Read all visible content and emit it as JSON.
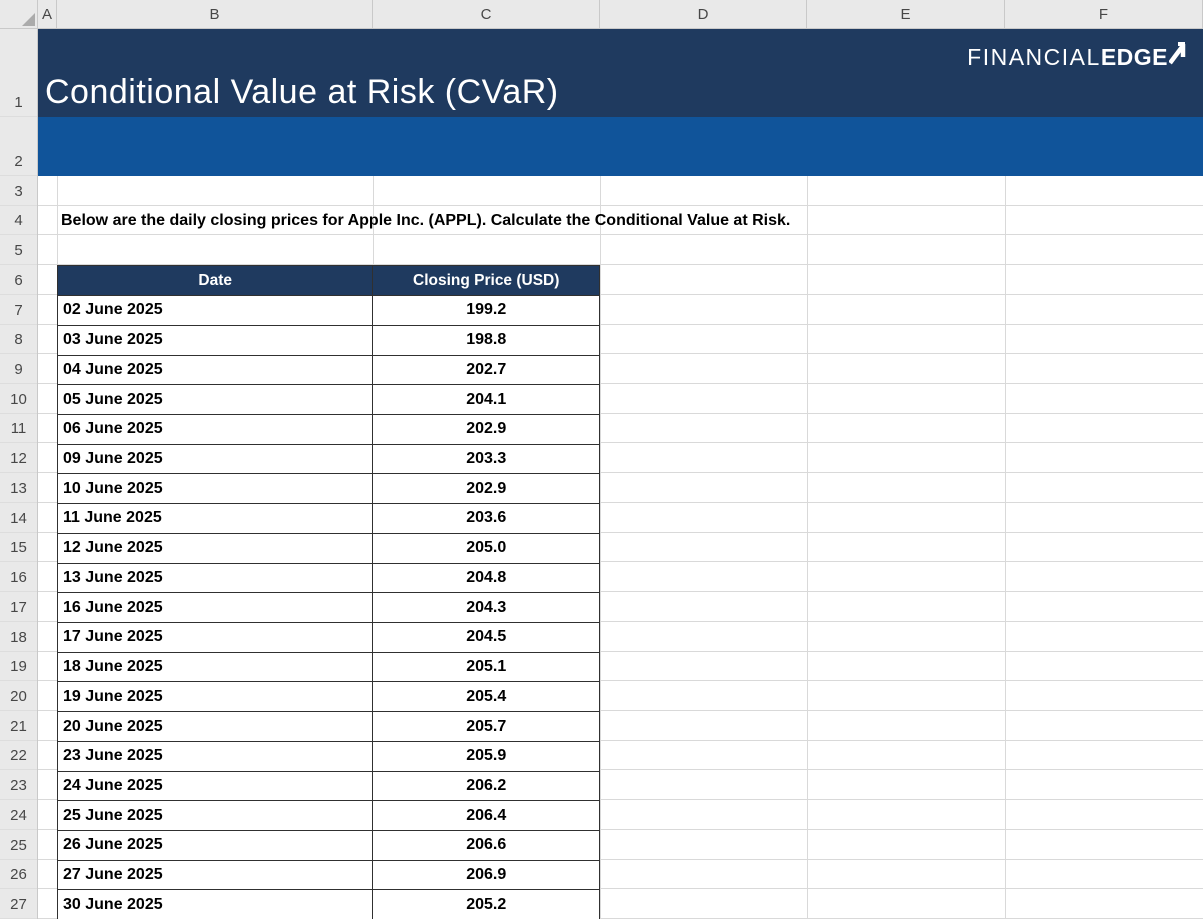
{
  "banner": {
    "title": "Conditional Value at Risk (CVaR)",
    "logo": {
      "light": "FINANCIAL",
      "bold": "EDGE"
    }
  },
  "instruction": "Below are the daily closing prices for Apple Inc. (APPL). Calculate the Conditional Value at Risk.",
  "spreadsheet": {
    "column_letters": [
      "A",
      "B",
      "C",
      "D",
      "E",
      "F"
    ],
    "row_count": 27
  },
  "table": {
    "columns": [
      "Date",
      "Closing Price (USD)"
    ],
    "rows": [
      {
        "date": "02 June 2025",
        "price": "199.2"
      },
      {
        "date": "03 June 2025",
        "price": "198.8"
      },
      {
        "date": "04 June 2025",
        "price": "202.7"
      },
      {
        "date": "05 June 2025",
        "price": "204.1"
      },
      {
        "date": "06 June 2025",
        "price": "202.9"
      },
      {
        "date": "09 June 2025",
        "price": "203.3"
      },
      {
        "date": "10 June 2025",
        "price": "202.9"
      },
      {
        "date": "11 June 2025",
        "price": "203.6"
      },
      {
        "date": "12 June 2025",
        "price": "205.0"
      },
      {
        "date": "13 June 2025",
        "price": "204.8"
      },
      {
        "date": "16 June 2025",
        "price": "204.3"
      },
      {
        "date": "17 June 2025",
        "price": "204.5"
      },
      {
        "date": "18 June 2025",
        "price": "205.1"
      },
      {
        "date": "19 June 2025",
        "price": "205.4"
      },
      {
        "date": "20 June 2025",
        "price": "205.7"
      },
      {
        "date": "23 June 2025",
        "price": "205.9"
      },
      {
        "date": "24 June 2025",
        "price": "206.2"
      },
      {
        "date": "25 June 2025",
        "price": "206.4"
      },
      {
        "date": "26 June 2025",
        "price": "206.6"
      },
      {
        "date": "27 June 2025",
        "price": "206.9"
      },
      {
        "date": "30 June 2025",
        "price": "205.2"
      }
    ]
  },
  "colors": {
    "banner-navy": "#1F3A5F",
    "accent-blue": "#10549A",
    "gridline": "#D9D9D9",
    "chrome-bg": "#E9E9E9",
    "chrome-border": "#C9C9C9",
    "chrome-text": "#474747",
    "table-border": "#303030",
    "cell-text": "#000000"
  }
}
